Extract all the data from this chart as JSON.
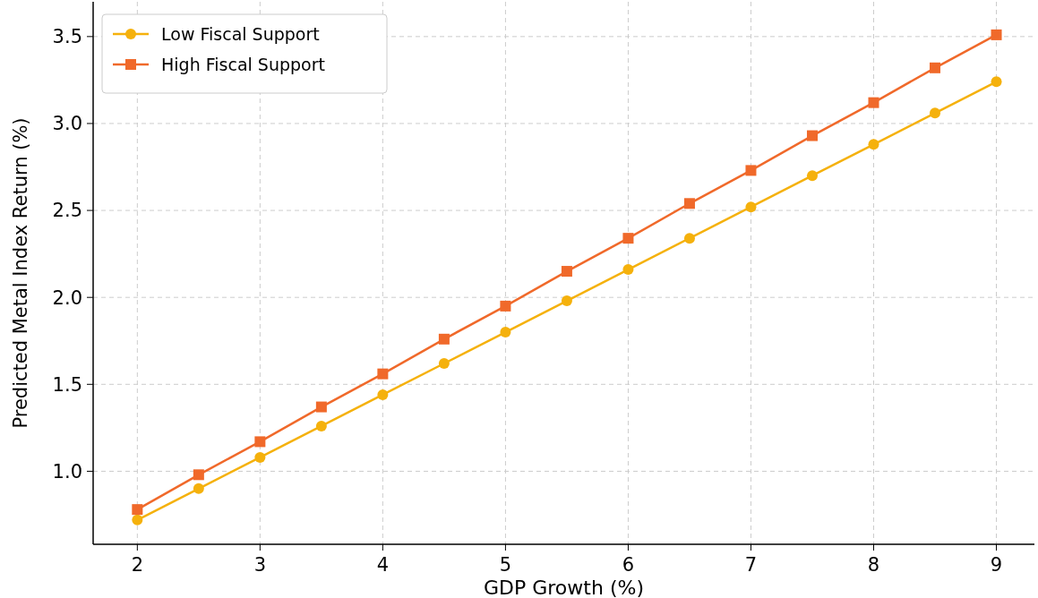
{
  "chart_data": {
    "type": "line",
    "xlabel": "GDP Growth (%)",
    "ylabel": "Predicted Metal Index Return (%)",
    "x": [
      2,
      2.5,
      3,
      3.5,
      4,
      4.5,
      5,
      5.5,
      6,
      6.5,
      7,
      7.5,
      8,
      8.5,
      9
    ],
    "series": [
      {
        "name": "Low Fiscal Support",
        "color": "#f5b10c",
        "marker": "circle",
        "values": [
          0.72,
          0.9,
          1.08,
          1.26,
          1.44,
          1.62,
          1.8,
          1.98,
          2.16,
          2.34,
          2.52,
          2.7,
          2.88,
          3.06,
          3.24
        ]
      },
      {
        "name": "High Fiscal Support",
        "color": "#f0692a",
        "marker": "square",
        "values": [
          0.78,
          0.98,
          1.17,
          1.37,
          1.56,
          1.76,
          1.95,
          2.15,
          2.34,
          2.54,
          2.73,
          2.93,
          3.12,
          3.32,
          3.51
        ]
      }
    ],
    "xlim": [
      1.64,
      9.31
    ],
    "xticks": [
      2,
      3,
      4,
      5,
      6,
      7,
      8,
      9
    ],
    "ylim": [
      0.58,
      3.7
    ],
    "yticks": [
      {
        "value": 1,
        "label": "1.0"
      },
      {
        "value": 1.5,
        "label": "1.5"
      },
      {
        "value": 2,
        "label": "2.0"
      },
      {
        "value": 2.5,
        "label": "2.5"
      },
      {
        "value": 3,
        "label": "3.0"
      },
      {
        "value": 3.5,
        "label": "3.5"
      }
    ],
    "grid": true,
    "legend": "top left",
    "line_style": "solid"
  }
}
